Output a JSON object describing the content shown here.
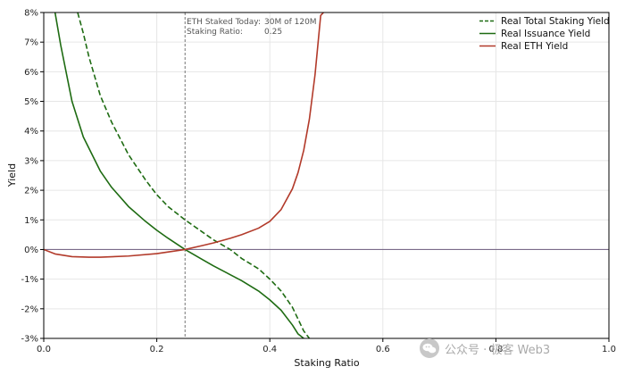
{
  "chart_data": {
    "type": "line",
    "title": "",
    "xlabel": "Staking Ratio",
    "ylabel": "Yield",
    "xlim": [
      0.0,
      1.0
    ],
    "ylim": [
      -3,
      8
    ],
    "x_ticks": [
      "0.0",
      "0.2",
      "0.4",
      "0.6",
      "0.8",
      "1.0"
    ],
    "y_ticks": [
      "-3%",
      "-2%",
      "-1%",
      "0%",
      "1%",
      "2%",
      "3%",
      "4%",
      "5%",
      "6%",
      "7%",
      "8%"
    ],
    "grid": true,
    "legend_position": "top-right",
    "reference_line": {
      "x": 0.25,
      "style": "dotted"
    },
    "annotation": {
      "staked_label": "ETH Staked Today:",
      "staked_value": "30M of 120M",
      "ratio_label": "Staking Ratio:",
      "ratio_value": "0.25"
    },
    "series": [
      {
        "name": "Real Total Staking Yield",
        "style": "dashed",
        "color": "#1e6b12",
        "x": [
          0.06,
          0.07,
          0.08,
          0.1,
          0.12,
          0.15,
          0.18,
          0.2,
          0.22,
          0.25,
          0.28,
          0.3,
          0.33,
          0.35,
          0.38,
          0.4,
          0.42,
          0.44,
          0.45,
          0.46,
          0.47
        ],
        "y": [
          8.0,
          7.3,
          6.5,
          5.2,
          4.3,
          3.2,
          2.35,
          1.85,
          1.45,
          1.0,
          0.6,
          0.33,
          0.0,
          -0.3,
          -0.65,
          -1.0,
          -1.4,
          -1.95,
          -2.35,
          -2.75,
          -3.0
        ]
      },
      {
        "name": "Real Issuance Yield",
        "style": "solid",
        "color": "#1e6b12",
        "x": [
          0.02,
          0.03,
          0.05,
          0.07,
          0.1,
          0.12,
          0.15,
          0.18,
          0.2,
          0.22,
          0.25,
          0.28,
          0.3,
          0.33,
          0.35,
          0.38,
          0.4,
          0.42,
          0.44,
          0.45,
          0.46
        ],
        "y": [
          8.0,
          6.9,
          5.0,
          3.8,
          2.65,
          2.1,
          1.45,
          0.95,
          0.65,
          0.38,
          0.0,
          -0.33,
          -0.55,
          -0.85,
          -1.05,
          -1.4,
          -1.7,
          -2.05,
          -2.55,
          -2.85,
          -3.0
        ]
      },
      {
        "name": "Real ETH Yield",
        "style": "solid",
        "color": "#b23a2a",
        "x": [
          0.0,
          0.02,
          0.05,
          0.08,
          0.1,
          0.15,
          0.2,
          0.25,
          0.28,
          0.3,
          0.33,
          0.35,
          0.38,
          0.4,
          0.42,
          0.44,
          0.45,
          0.46,
          0.47,
          0.48,
          0.485,
          0.49,
          0.495
        ],
        "y": [
          0.0,
          -0.15,
          -0.24,
          -0.26,
          -0.26,
          -0.22,
          -0.14,
          0.0,
          0.13,
          0.22,
          0.38,
          0.5,
          0.72,
          0.95,
          1.35,
          2.05,
          2.6,
          3.35,
          4.4,
          5.9,
          6.9,
          7.9,
          8.0
        ]
      }
    ]
  },
  "watermark": {
    "icon": "wechat-icon",
    "text": "公众号 · 极客 Web3"
  }
}
